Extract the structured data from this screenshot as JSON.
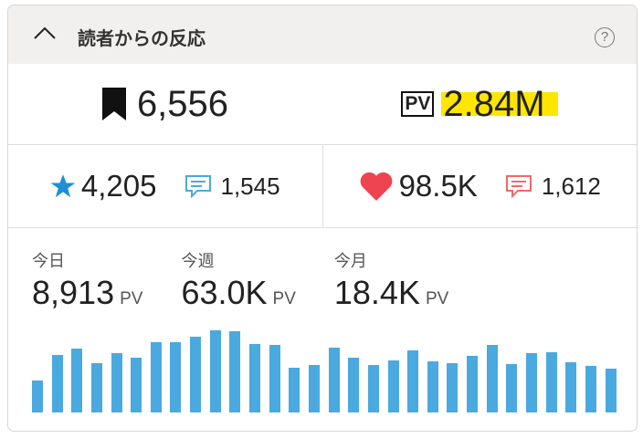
{
  "header": {
    "title": "読者からの反応",
    "help": "?"
  },
  "summary": {
    "bookmarks": "6,556",
    "pv_badge": "PV",
    "pv_total": "2.84M"
  },
  "row2": {
    "stars": "4,205",
    "star_comments": "1,545",
    "likes": "98.5K",
    "like_comments": "1,612"
  },
  "colors": {
    "accent": "#4aa9df",
    "heart": "#ef4450",
    "highlight": "#ffe600",
    "header_bg": "#f2f0ee"
  },
  "stats": [
    {
      "label": "今日",
      "value": "8,913",
      "unit": "PV"
    },
    {
      "label": "今週",
      "value": "63.0K",
      "unit": "PV"
    },
    {
      "label": "今月",
      "value": "18.4K",
      "unit": "PV"
    }
  ],
  "chart_data": {
    "type": "bar",
    "values": [
      35,
      63,
      70,
      54,
      65,
      60,
      77,
      77,
      83,
      90,
      89,
      75,
      74,
      49,
      52,
      71,
      60,
      52,
      57,
      68,
      56,
      54,
      62,
      74,
      53,
      65,
      66,
      55,
      51,
      48
    ]
  }
}
